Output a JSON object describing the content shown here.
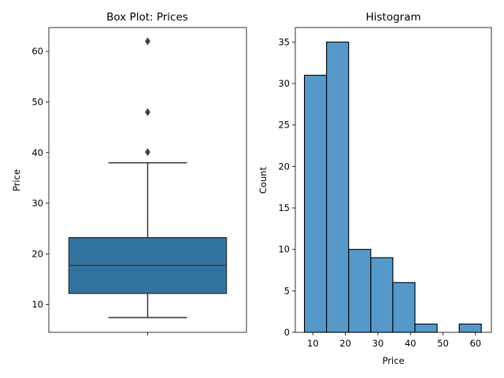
{
  "chart_data": [
    {
      "type": "box",
      "title": "Box Plot: Prices",
      "xlabel": "",
      "ylabel": "Price",
      "ylim": [
        4.5,
        64.7
      ],
      "yticks": [
        10,
        20,
        30,
        40,
        50,
        60
      ],
      "box": {
        "whisker_low": 7.4,
        "q1": 12.2,
        "median": 17.7,
        "q3": 23.2,
        "whisker_high": 38.0
      },
      "outliers": [
        40.1,
        48.0,
        62.0
      ],
      "color": "#3274a1",
      "line_color": "#3f3f3f"
    },
    {
      "type": "histogram",
      "title": "Histogram",
      "xlabel": "Price",
      "ylabel": "Count",
      "xlim": [
        4.6,
        64.9
      ],
      "ylim": [
        0,
        36.75
      ],
      "xticks": [
        10,
        20,
        30,
        40,
        50,
        60
      ],
      "yticks": [
        0,
        5,
        10,
        15,
        20,
        25,
        30,
        35
      ],
      "bin_edges": [
        7.4,
        14.2,
        21.0,
        27.8,
        34.6,
        41.4,
        48.2,
        55.0,
        61.8
      ],
      "counts": [
        31,
        35,
        10,
        9,
        6,
        1,
        0,
        1
      ],
      "color": "#5499c9"
    }
  ]
}
